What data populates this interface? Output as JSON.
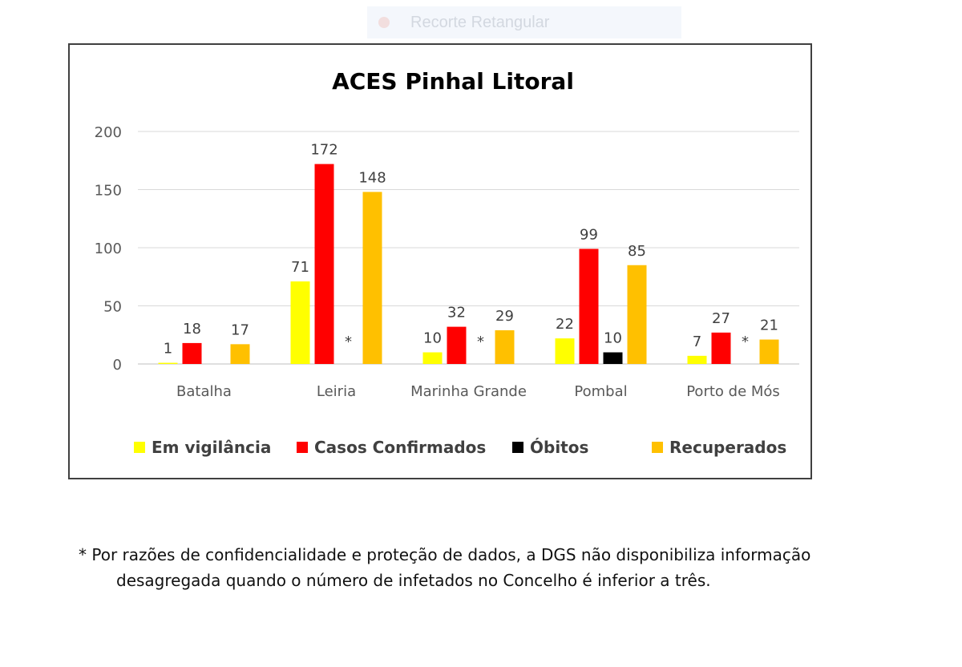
{
  "toolbar": {
    "label": "Recorte Retangular",
    "icon": "record-dot-icon"
  },
  "chart_data": {
    "type": "bar",
    "title": "ACES Pinhal Litoral",
    "xlabel": "",
    "ylabel": "",
    "ylim": [
      0,
      200
    ],
    "yticks": [
      0,
      50,
      100,
      150,
      200
    ],
    "grid": true,
    "legend_position": "bottom",
    "categories": [
      "Batalha",
      "Leiria",
      "Marinha Grande",
      "Pombal",
      "Porto de Mós"
    ],
    "series": [
      {
        "name": "Em vigilância",
        "color": "#ffff00",
        "values": [
          1,
          71,
          10,
          22,
          7
        ]
      },
      {
        "name": "Casos Confirmados",
        "color": "#ff0000",
        "values": [
          18,
          172,
          32,
          99,
          27
        ]
      },
      {
        "name": "Óbitos",
        "color": "#000000",
        "values": [
          null,
          null,
          null,
          10,
          null
        ]
      },
      {
        "name": "Recuperados",
        "color": "#ffc000",
        "values": [
          17,
          148,
          29,
          85,
          21
        ]
      }
    ],
    "suppressed_marker": "*",
    "suppressed": [
      {
        "category": "Leiria",
        "series": "Óbitos"
      },
      {
        "category": "Marinha Grande",
        "series": "Óbitos"
      },
      {
        "category": "Porto de Mós",
        "series": "Óbitos"
      }
    ]
  },
  "footnote": {
    "line1": "* Por razões de confidencialidade e proteção de dados, a DGS não disponibiliza informação",
    "line2": "desagregada quando o número de infetados no Concelho é inferior a três."
  }
}
